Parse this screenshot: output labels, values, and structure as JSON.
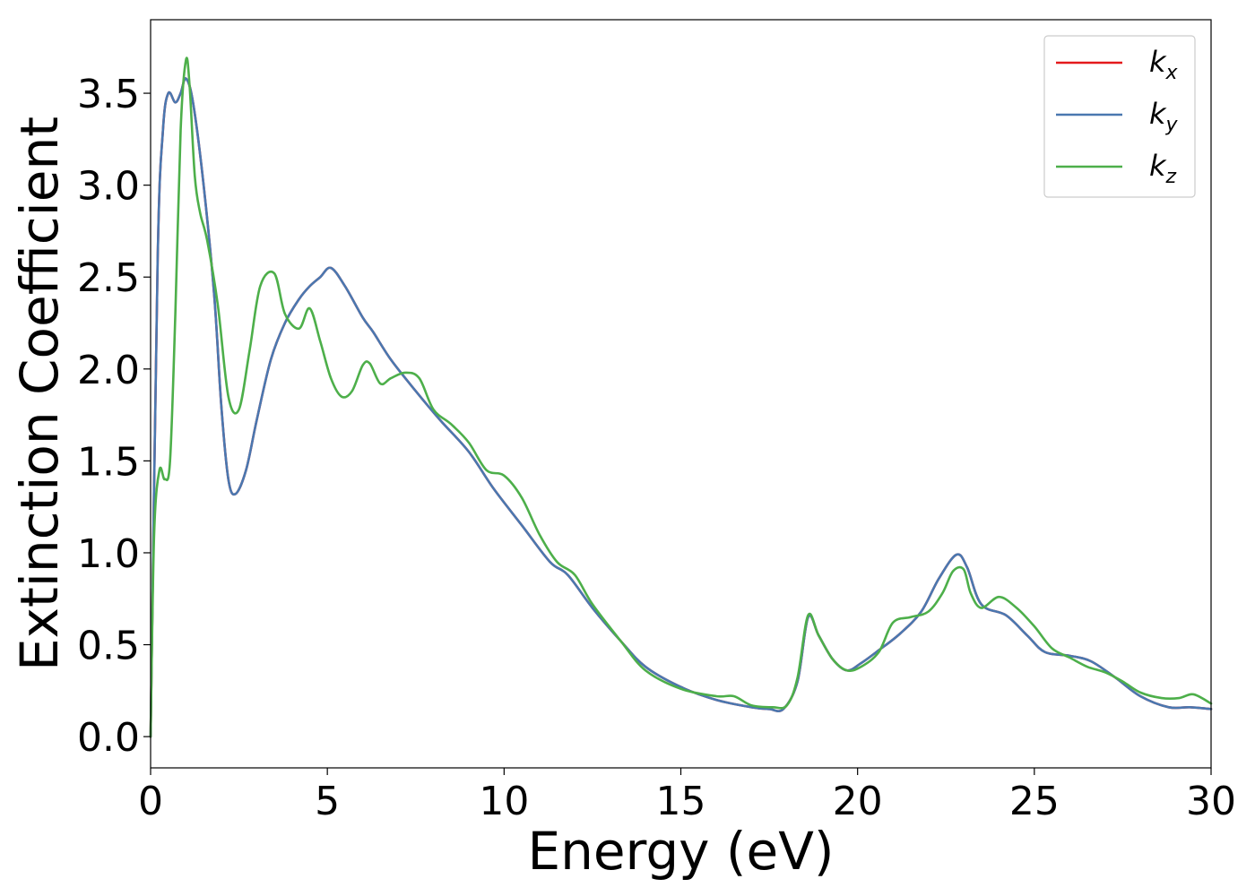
{
  "chart_data": {
    "type": "line",
    "title": "",
    "xlabel": "Energy (eV)",
    "ylabel": "Extinction Coefficient",
    "xlim": [
      0,
      30
    ],
    "ylim": [
      -0.17,
      3.9
    ],
    "xticks": [
      0,
      5,
      10,
      15,
      20,
      25,
      30
    ],
    "xtick_labels": [
      "0",
      "5",
      "10",
      "15",
      "20",
      "25",
      "30"
    ],
    "yticks": [
      0.0,
      0.5,
      1.0,
      1.5,
      2.0,
      2.5,
      3.0,
      3.5
    ],
    "ytick_labels": [
      "0.0",
      "0.5",
      "1.0",
      "1.5",
      "2.0",
      "2.5",
      "3.0",
      "3.5"
    ],
    "grid": false,
    "legend_position": "top-right",
    "series": [
      {
        "name": "k_x",
        "legend_base": "k",
        "legend_sub": "x",
        "color": "#e41a1c",
        "x": [
          0,
          0.2,
          0.35,
          0.5,
          0.7,
          0.85,
          1.0,
          1.2,
          1.5,
          1.8,
          2.0,
          2.2,
          2.4,
          2.7,
          3.0,
          3.4,
          3.8,
          4.2,
          4.5,
          4.8,
          5.1,
          5.5,
          6.0,
          6.3,
          6.8,
          7.5,
          8.2,
          9.0,
          9.7,
          10.5,
          11.3,
          11.8,
          12.5,
          13.3,
          14.0,
          15.0,
          16.0,
          17.0,
          17.5,
          17.9,
          18.3,
          18.6,
          18.9,
          19.3,
          19.7,
          20.1,
          20.6,
          21.2,
          21.8,
          22.3,
          22.8,
          23.1,
          23.5,
          24.2,
          24.8,
          25.3,
          26.0,
          26.6,
          27.3,
          28.0,
          28.8,
          29.4,
          30.0
        ],
        "y": [
          0.0,
          2.6,
          3.3,
          3.5,
          3.45,
          3.5,
          3.58,
          3.45,
          3.0,
          2.4,
          1.8,
          1.4,
          1.32,
          1.45,
          1.72,
          2.05,
          2.25,
          2.38,
          2.45,
          2.5,
          2.55,
          2.45,
          2.28,
          2.2,
          2.05,
          1.88,
          1.72,
          1.55,
          1.35,
          1.15,
          0.95,
          0.88,
          0.7,
          0.52,
          0.38,
          0.27,
          0.2,
          0.16,
          0.15,
          0.15,
          0.3,
          0.65,
          0.55,
          0.42,
          0.36,
          0.4,
          0.47,
          0.56,
          0.68,
          0.86,
          0.99,
          0.92,
          0.72,
          0.66,
          0.55,
          0.46,
          0.44,
          0.41,
          0.32,
          0.22,
          0.16,
          0.16,
          0.15
        ]
      },
      {
        "name": "k_y",
        "legend_base": "k",
        "legend_sub": "y",
        "color": "#4a78b0",
        "x": [
          0,
          0.2,
          0.35,
          0.5,
          0.7,
          0.85,
          1.0,
          1.2,
          1.5,
          1.8,
          2.0,
          2.2,
          2.4,
          2.7,
          3.0,
          3.4,
          3.8,
          4.2,
          4.5,
          4.8,
          5.1,
          5.5,
          6.0,
          6.3,
          6.8,
          7.5,
          8.2,
          9.0,
          9.7,
          10.5,
          11.3,
          11.8,
          12.5,
          13.3,
          14.0,
          15.0,
          16.0,
          17.0,
          17.5,
          17.9,
          18.3,
          18.6,
          18.9,
          19.3,
          19.7,
          20.1,
          20.6,
          21.2,
          21.8,
          22.3,
          22.8,
          23.1,
          23.5,
          24.2,
          24.8,
          25.3,
          26.0,
          26.6,
          27.3,
          28.0,
          28.8,
          29.4,
          30.0
        ],
        "y": [
          0.0,
          2.6,
          3.3,
          3.5,
          3.45,
          3.5,
          3.58,
          3.45,
          3.0,
          2.4,
          1.8,
          1.4,
          1.32,
          1.45,
          1.72,
          2.05,
          2.25,
          2.38,
          2.45,
          2.5,
          2.55,
          2.45,
          2.28,
          2.2,
          2.05,
          1.88,
          1.72,
          1.55,
          1.35,
          1.15,
          0.95,
          0.88,
          0.7,
          0.52,
          0.38,
          0.27,
          0.2,
          0.16,
          0.15,
          0.15,
          0.3,
          0.65,
          0.55,
          0.42,
          0.36,
          0.4,
          0.47,
          0.56,
          0.68,
          0.86,
          0.99,
          0.92,
          0.72,
          0.66,
          0.55,
          0.46,
          0.44,
          0.41,
          0.32,
          0.22,
          0.16,
          0.16,
          0.15
        ]
      },
      {
        "name": "k_z",
        "legend_base": "k",
        "legend_sub": "z",
        "color": "#4daf4a",
        "x": [
          0,
          0.1,
          0.25,
          0.4,
          0.55,
          0.7,
          0.85,
          1.0,
          1.1,
          1.25,
          1.4,
          1.6,
          1.9,
          2.2,
          2.5,
          2.8,
          3.1,
          3.5,
          3.8,
          4.2,
          4.5,
          4.8,
          5.1,
          5.4,
          5.7,
          6.0,
          6.2,
          6.5,
          6.8,
          7.2,
          7.6,
          8.0,
          8.5,
          9.0,
          9.5,
          10.0,
          10.5,
          11.0,
          11.5,
          12.0,
          12.5,
          13.3,
          14.0,
          15.0,
          16.0,
          16.5,
          17.0,
          17.6,
          18.0,
          18.3,
          18.6,
          18.9,
          19.3,
          19.7,
          20.1,
          20.6,
          21.0,
          21.5,
          22.0,
          22.4,
          22.7,
          23.0,
          23.2,
          23.5,
          24.0,
          24.5,
          25.0,
          25.5,
          26.0,
          26.5,
          27.0,
          27.5,
          28.0,
          28.6,
          29.1,
          29.5,
          30.0
        ],
        "y": [
          0.0,
          1.1,
          1.45,
          1.4,
          1.5,
          2.3,
          3.3,
          3.68,
          3.55,
          3.05,
          2.85,
          2.7,
          2.35,
          1.85,
          1.78,
          2.1,
          2.45,
          2.52,
          2.3,
          2.22,
          2.33,
          2.15,
          1.95,
          1.85,
          1.88,
          2.02,
          2.03,
          1.92,
          1.95,
          1.98,
          1.95,
          1.78,
          1.7,
          1.6,
          1.45,
          1.42,
          1.3,
          1.1,
          0.95,
          0.88,
          0.72,
          0.52,
          0.36,
          0.26,
          0.22,
          0.22,
          0.17,
          0.16,
          0.17,
          0.32,
          0.66,
          0.55,
          0.42,
          0.36,
          0.38,
          0.46,
          0.62,
          0.65,
          0.68,
          0.78,
          0.9,
          0.91,
          0.78,
          0.7,
          0.76,
          0.7,
          0.6,
          0.48,
          0.43,
          0.38,
          0.35,
          0.3,
          0.24,
          0.21,
          0.21,
          0.23,
          0.18
        ]
      }
    ]
  }
}
